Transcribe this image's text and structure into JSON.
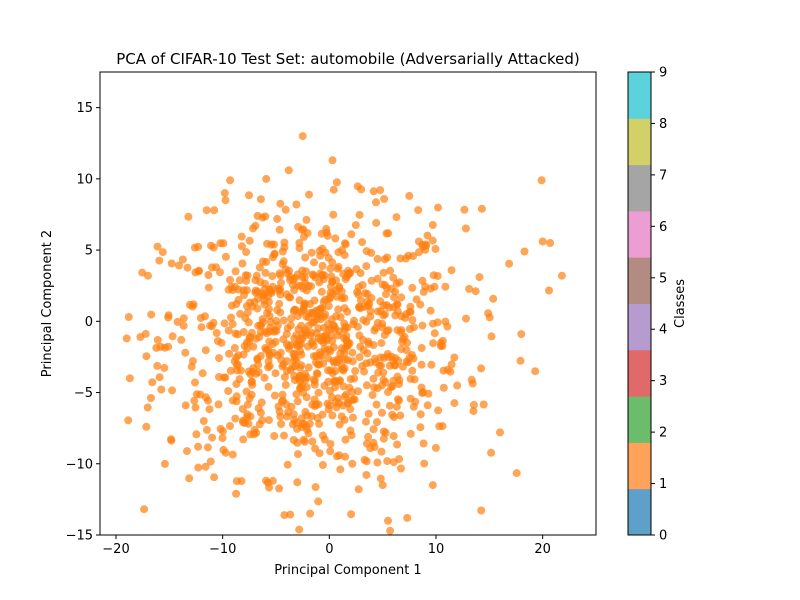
{
  "chart_data": {
    "type": "scatter",
    "title": "PCA of CIFAR-10 Test Set: automobile (Adversarially Attacked)",
    "xlabel": "Principal Component 1",
    "ylabel": "Principal Component 2",
    "xlim": [
      -21.5,
      25
    ],
    "ylim": [
      -15,
      17.5
    ],
    "x_ticks": [
      -20,
      -10,
      0,
      10,
      20
    ],
    "y_ticks": [
      -15,
      -10,
      -5,
      0,
      5,
      10,
      15
    ],
    "grid": false,
    "point_color": "#ff7f0e",
    "point_alpha": 0.7,
    "point_count": 1000,
    "point_distribution": {
      "center": [
        -1.5,
        -1.5
      ],
      "spread": [
        7.0,
        4.6
      ],
      "note_x_range": [
        -19,
        22
      ],
      "note_y_range": [
        -14.8,
        13
      ]
    },
    "sample_points": [
      {
        "x": -2.5,
        "y": 13.0
      },
      {
        "x": 0.3,
        "y": 11.3
      },
      {
        "x": -3.8,
        "y": 10.6
      },
      {
        "x": -9.3,
        "y": 9.9
      },
      {
        "x": 19.9,
        "y": 9.9
      },
      {
        "x": -9.8,
        "y": 9.0
      },
      {
        "x": 7.5,
        "y": 8.8
      },
      {
        "x": -11.5,
        "y": 7.8
      },
      {
        "x": 14.3,
        "y": 7.9
      },
      {
        "x": 21.8,
        "y": 3.2
      },
      {
        "x": 20.0,
        "y": 5.6
      },
      {
        "x": 20.7,
        "y": 5.5
      },
      {
        "x": 18.3,
        "y": 4.9
      },
      {
        "x": 19.3,
        "y": -3.5
      },
      {
        "x": 18.0,
        "y": -0.9
      },
      {
        "x": 16.0,
        "y": -7.8
      },
      {
        "x": -17.0,
        "y": 3.2
      },
      {
        "x": -18.8,
        "y": 0.3
      },
      {
        "x": -19.0,
        "y": -1.2
      },
      {
        "x": -18.7,
        "y": -4.0
      },
      {
        "x": -12.3,
        "y": -8.8
      },
      {
        "x": -1.8,
        "y": -13.5
      },
      {
        "x": 5.5,
        "y": -14.0
      },
      {
        "x": 5.7,
        "y": -14.7
      },
      {
        "x": 7.3,
        "y": -13.8
      },
      {
        "x": 5.0,
        "y": -11.5
      },
      {
        "x": 9.7,
        "y": -11.5
      },
      {
        "x": -3.0,
        "y": -11.3
      },
      {
        "x": -5.3,
        "y": -11.2
      },
      {
        "x": -10.8,
        "y": 7.8
      }
    ],
    "colorbar": {
      "label": "Classes",
      "ticks": [
        "0",
        "1",
        "2",
        "3",
        "4",
        "5",
        "6",
        "7",
        "8",
        "9"
      ],
      "colors": [
        "#5fa0cb",
        "#ffa35b",
        "#6bbc6b",
        "#e06969",
        "#b59bd0",
        "#b28b82",
        "#ec9ed4",
        "#a5a5a5",
        "#d2d167",
        "#5cd2dd"
      ]
    }
  }
}
